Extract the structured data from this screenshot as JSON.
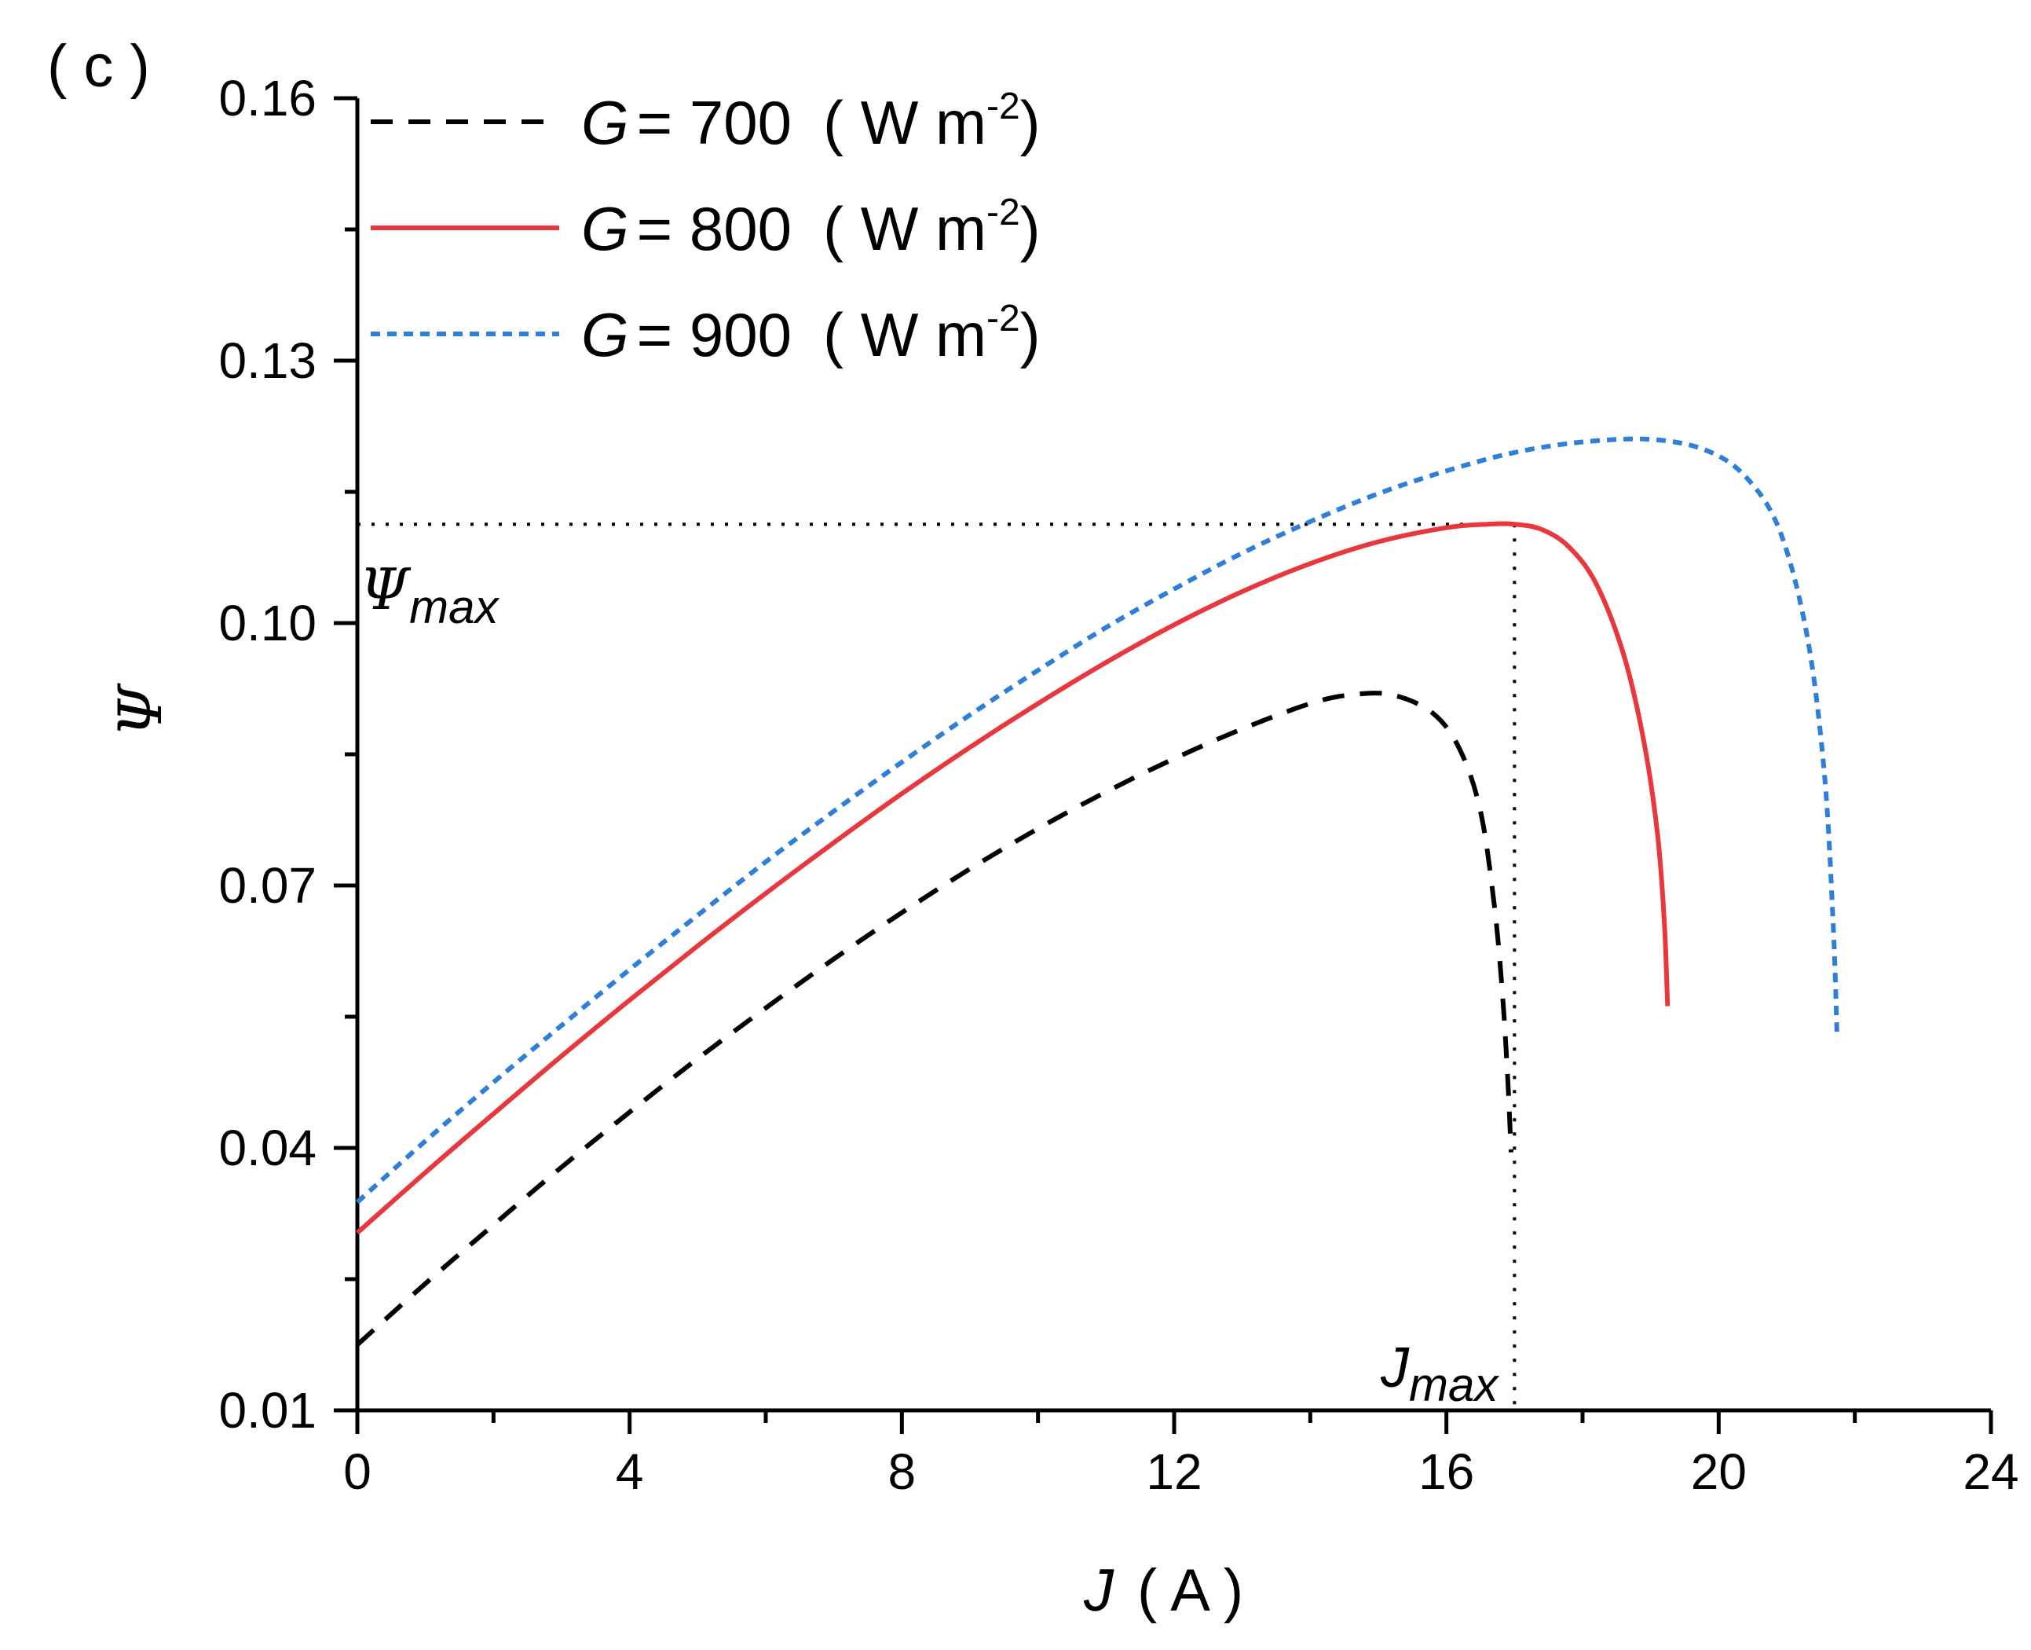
{
  "chart_data": {
    "type": "line",
    "panel_label": "( c )",
    "xlabel": "J",
    "xlabel_unit": "( A )",
    "ylabel": "Ψ",
    "xlim": [
      0,
      24
    ],
    "ylim": [
      0.01,
      0.16
    ],
    "xticks": [
      0,
      4,
      8,
      12,
      16,
      20,
      24
    ],
    "xtick_labels": [
      "0",
      "4",
      "8",
      "12",
      "16",
      "20",
      "24"
    ],
    "yticks": [
      0.01,
      0.04,
      0.07,
      0.1,
      0.13,
      0.16
    ],
    "ytick_labels": [
      "0.01",
      "0.04",
      "0.07",
      "0.10",
      "0.13",
      "0.16"
    ],
    "grid": false,
    "legend_position": "top-left",
    "series": [
      {
        "name": "G = 700",
        "legend_var": "G",
        "legend_value": "= 700",
        "legend_unit": "( W m",
        "legend_exp": "-2",
        "legend_close": ")",
        "color": "#000000",
        "style": "dashed",
        "x": [
          0,
          1,
          2,
          3,
          4,
          5,
          6,
          7,
          8,
          9,
          10,
          11,
          12,
          13,
          14,
          14.6,
          15.2,
          15.8,
          16.2,
          16.5,
          16.7,
          16.82,
          16.9,
          16.95
        ],
        "y": [
          0.0175,
          0.0245,
          0.0312,
          0.0378,
          0.0441,
          0.0502,
          0.056,
          0.0616,
          0.0669,
          0.0719,
          0.0765,
          0.0807,
          0.0845,
          0.0879,
          0.0908,
          0.0918,
          0.0918,
          0.0897,
          0.0855,
          0.0785,
          0.068,
          0.058,
          0.048,
          0.0395
        ]
      },
      {
        "name": "G = 800",
        "legend_var": "G",
        "legend_value": "= 800",
        "legend_unit": "( W m",
        "legend_exp": "-2",
        "legend_close": ")",
        "color": "#e8383d",
        "style": "solid",
        "x": [
          0,
          1,
          2,
          3,
          4,
          5,
          6,
          7,
          8,
          9,
          10,
          11,
          12,
          13,
          14,
          15,
          16,
          16.6,
          17.0,
          17.4,
          17.8,
          18.2,
          18.6,
          18.9,
          19.1,
          19.2,
          19.25
        ],
        "y": [
          0.0303,
          0.0372,
          0.0439,
          0.0505,
          0.0569,
          0.0631,
          0.0691,
          0.0749,
          0.0805,
          0.0858,
          0.0908,
          0.0955,
          0.0998,
          0.1036,
          0.1068,
          0.1093,
          0.1109,
          0.1113,
          0.1113,
          0.1107,
          0.1087,
          0.1045,
          0.0965,
          0.0865,
          0.076,
          0.066,
          0.0562
        ]
      },
      {
        "name": "G = 900",
        "legend_var": "G",
        "legend_value": "= 900",
        "legend_unit": "( W m",
        "legend_exp": "-2",
        "legend_close": ")",
        "color": "#2f7fd9",
        "style": "dotted",
        "x": [
          0,
          1,
          2,
          3,
          4,
          5,
          6,
          7,
          8,
          9,
          10,
          11,
          12,
          13,
          14,
          15,
          16,
          17,
          18,
          19,
          19.8,
          20.4,
          20.9,
          21.3,
          21.55,
          21.68,
          21.74
        ],
        "y": [
          0.0338,
          0.0408,
          0.0475,
          0.054,
          0.0604,
          0.0666,
          0.0727,
          0.0785,
          0.0841,
          0.0895,
          0.0946,
          0.0995,
          0.1039,
          0.108,
          0.1116,
          0.1148,
          0.1174,
          0.1195,
          0.1207,
          0.121,
          0.1198,
          0.1167,
          0.1105,
          0.0985,
          0.083,
          0.066,
          0.0525
        ]
      }
    ],
    "annotations": {
      "psi_max": {
        "label": "Ψ",
        "sub": "max",
        "y": 0.1113,
        "x_end": 17.0
      },
      "j_max": {
        "label": "J",
        "sub": "max",
        "x": 17.0
      }
    }
  }
}
